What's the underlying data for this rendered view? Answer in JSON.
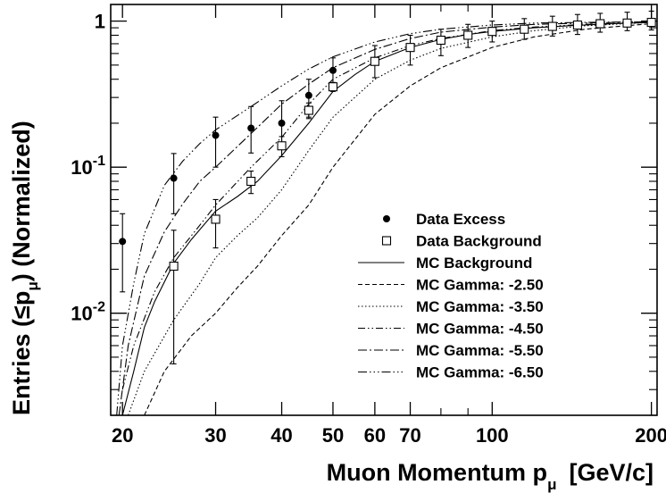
{
  "chart_data": {
    "type": "line",
    "title": "",
    "xlabel": "Muon Momentum pμ [GeV/c]",
    "xlabel_main": "Muon Momentum p",
    "xlabel_sub": "μ",
    "xlabel_unit": "[GeV/c]",
    "ylabel": "Entries (≤pμ) (Normalized)",
    "ylabel_pre": "Entries (≤p",
    "ylabel_sub": "μ",
    "ylabel_post": ") (Normalized)",
    "xscale": "log",
    "yscale": "log",
    "xlim": [
      19,
      205
    ],
    "ylim": [
      0.002,
      1.3
    ],
    "xticks": [
      {
        "value": 20,
        "label": "20"
      },
      {
        "value": 30,
        "label": "30"
      },
      {
        "value": 40,
        "label": "40"
      },
      {
        "value": 50,
        "label": "50"
      },
      {
        "value": 60,
        "label": "60"
      },
      {
        "value": 70,
        "label": "70"
      },
      {
        "value": 100,
        "label": "100"
      },
      {
        "value": 200,
        "label": "200"
      }
    ],
    "yticks": [
      {
        "value": 1,
        "base": "1",
        "exp": ""
      },
      {
        "value": 0.1,
        "base": "10",
        "exp": "-1"
      },
      {
        "value": 0.01,
        "base": "10",
        "exp": "-2"
      }
    ],
    "grid": false,
    "legend_position": "lower-right",
    "series": [
      {
        "name": "Data Excess",
        "kind": "points",
        "marker": "filled-circle",
        "x": [
          20,
          25,
          30,
          35,
          40,
          45,
          50,
          60,
          70,
          80,
          90,
          100,
          115,
          130,
          145,
          160,
          180,
          200
        ],
        "y": [
          0.031,
          0.084,
          0.165,
          0.185,
          0.2,
          0.31,
          0.46,
          0.54,
          0.66,
          0.74,
          0.8,
          0.85,
          0.88,
          0.92,
          0.94,
          0.96,
          0.97,
          0.98
        ],
        "ylow": [
          0.014,
          0.048,
          0.1,
          0.125,
          0.135,
          0.22,
          0.36,
          0.41,
          0.5,
          0.58,
          0.66,
          0.72,
          0.75,
          0.79,
          0.81,
          0.84,
          0.86,
          0.87
        ],
        "yhigh": [
          0.048,
          0.124,
          0.22,
          0.26,
          0.285,
          0.4,
          0.56,
          0.68,
          0.8,
          0.88,
          0.95,
          1.0,
          1.04,
          1.08,
          1.11,
          1.13,
          1.15,
          1.17
        ]
      },
      {
        "name": "Data Background",
        "kind": "points",
        "marker": "open-square",
        "x": [
          25,
          30,
          35,
          40,
          45,
          50,
          60,
          70,
          80,
          90,
          100,
          115,
          130,
          145,
          160,
          180,
          200
        ],
        "y": [
          0.021,
          0.044,
          0.08,
          0.14,
          0.245,
          0.355,
          0.53,
          0.66,
          0.74,
          0.8,
          0.85,
          0.88,
          0.92,
          0.94,
          0.96,
          0.97,
          0.98
        ],
        "ylow": [
          0.0045,
          0.028,
          0.066,
          0.118,
          0.215,
          0.33,
          0.5,
          0.63,
          0.71,
          0.77,
          0.82,
          0.85,
          0.89,
          0.91,
          0.93,
          0.94,
          0.95
        ],
        "yhigh": [
          0.037,
          0.06,
          0.094,
          0.162,
          0.275,
          0.38,
          0.56,
          0.69,
          0.77,
          0.83,
          0.88,
          0.91,
          0.95,
          0.97,
          0.99,
          1.0,
          1.01
        ]
      },
      {
        "name": "MC Background",
        "kind": "line",
        "dash": "",
        "x": [
          20,
          21,
          22,
          23,
          25,
          27,
          30,
          33,
          36,
          40,
          45,
          50,
          55,
          60,
          70,
          80,
          90,
          100,
          120,
          140,
          170,
          200
        ],
        "y": [
          0.002,
          0.004,
          0.008,
          0.012,
          0.022,
          0.032,
          0.05,
          0.063,
          0.08,
          0.12,
          0.2,
          0.33,
          0.43,
          0.53,
          0.66,
          0.75,
          0.81,
          0.85,
          0.9,
          0.93,
          0.96,
          0.98
        ]
      },
      {
        "name": "MC Gamma: -2.50",
        "kind": "line",
        "dash": "5,3",
        "x": [
          22,
          24,
          27,
          30,
          33,
          36,
          40,
          45,
          50,
          60,
          70,
          80,
          100,
          120,
          150,
          200
        ],
        "y": [
          0.002,
          0.004,
          0.007,
          0.01,
          0.015,
          0.021,
          0.034,
          0.055,
          0.1,
          0.23,
          0.36,
          0.48,
          0.66,
          0.78,
          0.88,
          0.96
        ]
      },
      {
        "name": "MC Gamma: -3.50",
        "kind": "line",
        "dash": "1.5,2.5",
        "x": [
          20.5,
          22,
          25,
          28,
          30,
          33,
          36,
          40,
          45,
          50,
          60,
          70,
          80,
          100,
          120,
          150,
          200
        ],
        "y": [
          0.002,
          0.004,
          0.009,
          0.016,
          0.024,
          0.034,
          0.045,
          0.07,
          0.13,
          0.22,
          0.4,
          0.54,
          0.65,
          0.78,
          0.86,
          0.93,
          0.98
        ]
      },
      {
        "name": "MC Gamma: -4.50",
        "kind": "line",
        "dash": "8,3,1.5,3,1.5,3",
        "x": [
          20,
          21,
          23,
          25,
          28,
          30,
          35,
          40,
          45,
          50,
          60,
          70,
          80,
          100,
          120,
          150,
          200
        ],
        "y": [
          0.003,
          0.006,
          0.014,
          0.024,
          0.04,
          0.055,
          0.1,
          0.16,
          0.27,
          0.4,
          0.56,
          0.68,
          0.76,
          0.86,
          0.91,
          0.95,
          0.98
        ]
      },
      {
        "name": "MC Gamma: -5.50",
        "kind": "line",
        "dash": "10,3,2,3",
        "x": [
          19.7,
          20.5,
          22,
          24,
          26,
          28,
          30,
          35,
          40,
          45,
          50,
          60,
          70,
          80,
          100,
          120,
          150,
          200
        ],
        "y": [
          0.002,
          0.006,
          0.018,
          0.036,
          0.056,
          0.08,
          0.1,
          0.17,
          0.27,
          0.37,
          0.48,
          0.64,
          0.76,
          0.84,
          0.91,
          0.95,
          0.97,
          0.99
        ]
      },
      {
        "name": "MC Gamma: -6.50",
        "kind": "line",
        "dash": "10,3,1.5,3,1.5,3,1.5,3",
        "x": [
          19.5,
          20,
          21,
          22,
          24,
          26,
          28,
          30,
          35,
          40,
          45,
          50,
          60,
          70,
          80,
          100,
          120,
          150,
          200
        ],
        "y": [
          0.002,
          0.006,
          0.016,
          0.035,
          0.075,
          0.11,
          0.145,
          0.18,
          0.26,
          0.36,
          0.47,
          0.57,
          0.72,
          0.82,
          0.88,
          0.94,
          0.97,
          0.98,
          0.99
        ]
      }
    ]
  }
}
